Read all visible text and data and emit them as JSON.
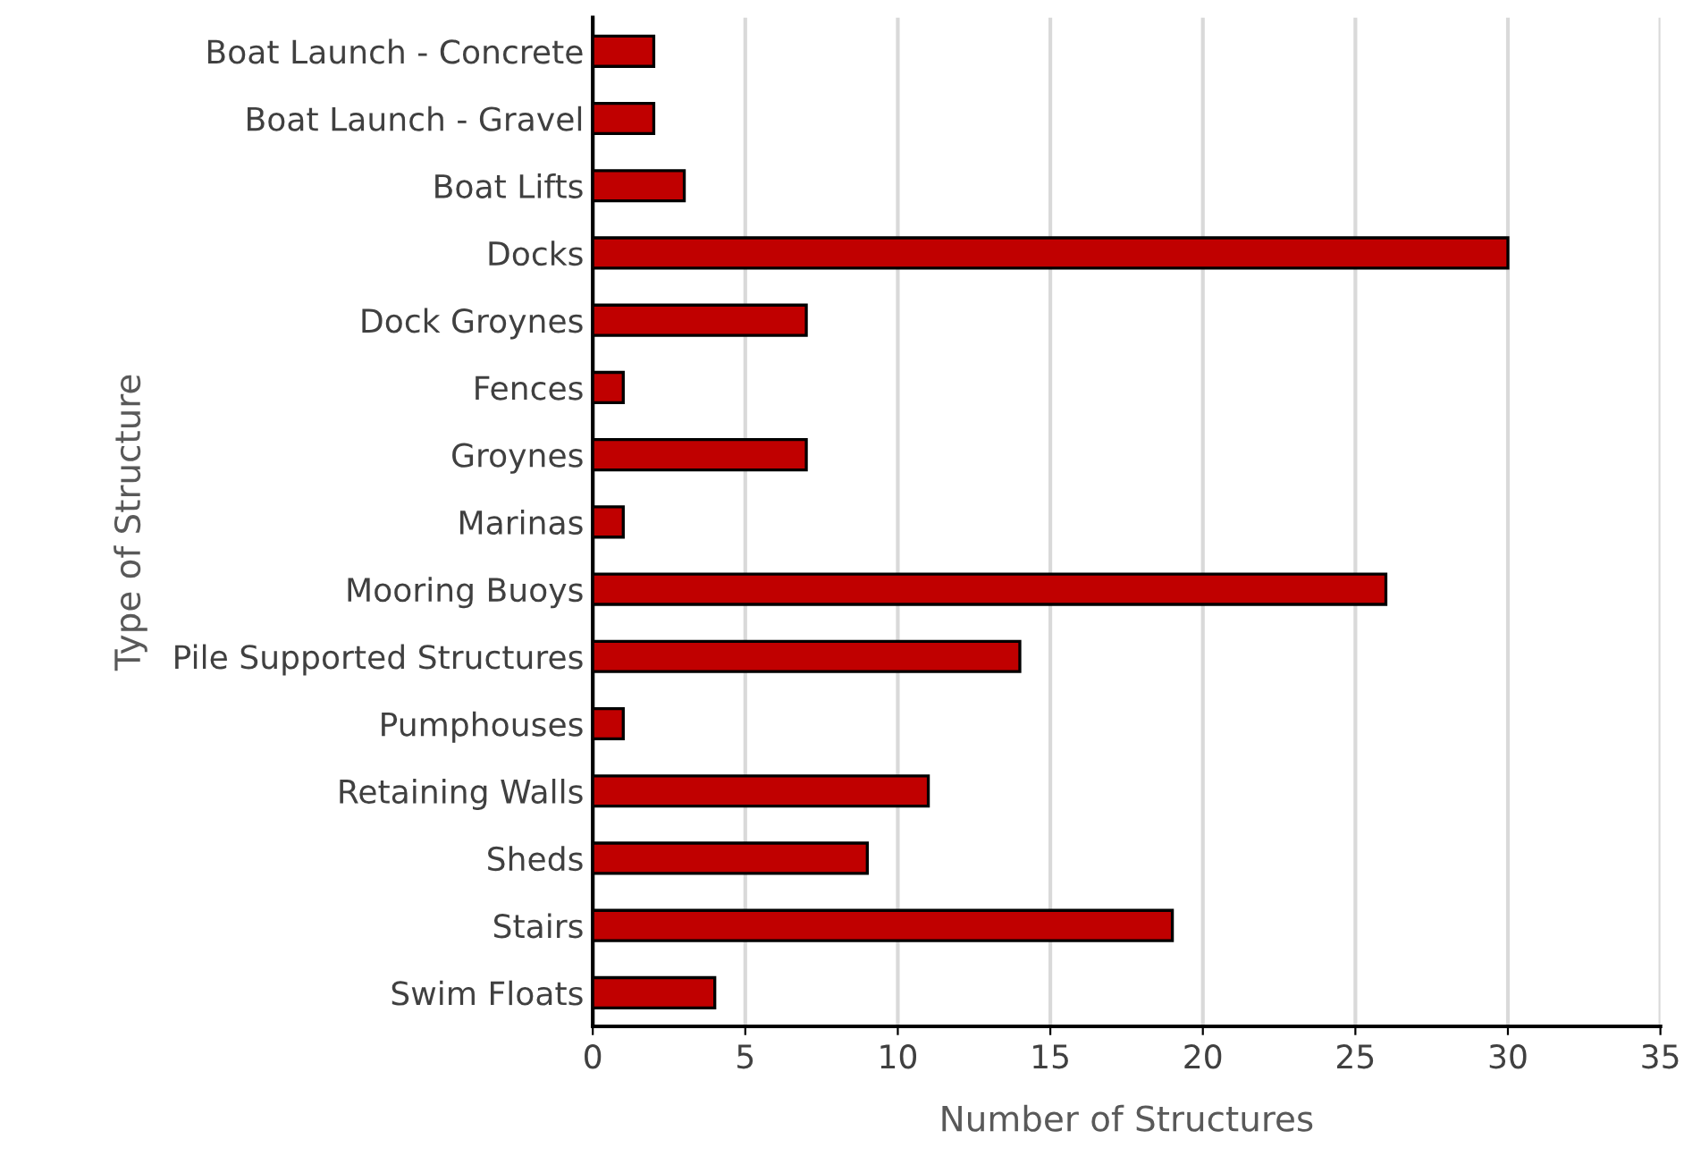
{
  "chart_data": {
    "type": "bar",
    "orientation": "horizontal",
    "xlabel": "Number of Structures",
    "ylabel": "Type of Structure",
    "categories": [
      "Boat Launch - Concrete",
      "Boat Launch - Gravel",
      "Boat Lifts",
      "Docks",
      "Dock Groynes",
      "Fences",
      "Groynes",
      "Marinas",
      "Mooring Buoys",
      "Pile Supported Structures",
      "Pumphouses",
      "Retaining Walls",
      "Sheds",
      "Stairs",
      "Swim Floats"
    ],
    "values": [
      2,
      2,
      3,
      30,
      7,
      1,
      7,
      1,
      26,
      14,
      1,
      11,
      9,
      19,
      4
    ],
    "color": "#c00000",
    "xlim": [
      0,
      35
    ],
    "xticks": [
      0,
      5,
      10,
      15,
      20,
      25,
      30,
      35
    ],
    "grid": "x",
    "legend": false
  }
}
